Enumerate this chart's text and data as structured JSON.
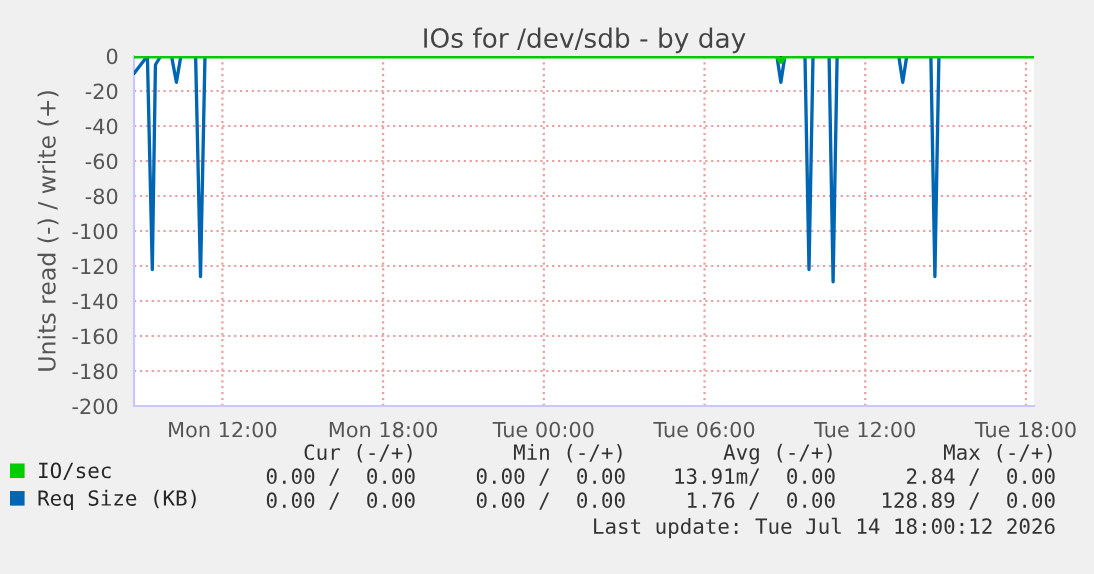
{
  "chart_data": {
    "type": "line",
    "title": "IOs for /dev/sdb - by day",
    "ylabel": "Units read (-) / write (+)",
    "xlim": [
      "2026-07-13T08:42",
      "2026-07-14T18:18"
    ],
    "xticks": [
      {
        "value": "2026-07-13T12:00",
        "label": "Mon 12:00"
      },
      {
        "value": "2026-07-13T18:00",
        "label": "Mon 18:00"
      },
      {
        "value": "2026-07-14T00:00",
        "label": "Tue 00:00"
      },
      {
        "value": "2026-07-14T06:00",
        "label": "Tue 06:00"
      },
      {
        "value": "2026-07-14T12:00",
        "label": "Tue 12:00"
      },
      {
        "value": "2026-07-14T18:00",
        "label": "Tue 18:00"
      }
    ],
    "ylim": [
      -200,
      0
    ],
    "yticks": [
      -200,
      -180,
      -160,
      -140,
      -120,
      -100,
      -80,
      -60,
      -40,
      -20,
      0
    ],
    "grid": true,
    "legend": "bottom left",
    "marker": "none",
    "line_style": "solid",
    "ref_lines": [
      {
        "axis": "y",
        "value": 0,
        "color": "#000000"
      }
    ],
    "series": [
      {
        "name": "IO/sec",
        "color": "#00cc00",
        "x": [
          "2026-07-13T08:42",
          "2026-07-14T08:42",
          "2026-07-14T08:51",
          "2026-07-14T09:00",
          "2026-07-14T18:18"
        ],
        "values": [
          0,
          0,
          -3,
          0,
          0
        ]
      },
      {
        "name": "Req Size (KB)",
        "color": "#0066b3",
        "x": [
          "2026-07-13T08:42",
          "2026-07-13T09:12",
          "2026-07-13T09:23",
          "2026-07-13T09:30",
          "2026-07-13T09:42",
          "2026-07-13T10:06",
          "2026-07-13T10:17",
          "2026-07-13T10:27",
          "2026-07-13T11:00",
          "2026-07-13T11:11",
          "2026-07-13T11:21",
          "2026-07-14T08:42",
          "2026-07-14T08:51",
          "2026-07-14T09:00",
          "2026-07-14T09:45",
          "2026-07-14T09:54",
          "2026-07-14T10:03",
          "2026-07-14T10:39",
          "2026-07-14T10:48",
          "2026-07-14T10:57",
          "2026-07-14T13:15",
          "2026-07-14T13:24",
          "2026-07-14T13:33",
          "2026-07-14T14:27",
          "2026-07-14T14:36",
          "2026-07-14T14:45",
          "2026-07-14T18:18"
        ],
        "values": [
          -10,
          0,
          -122,
          -5,
          0,
          0,
          -15,
          0,
          0,
          -126,
          0,
          0,
          -15,
          0,
          0,
          -122,
          0,
          0,
          -129,
          0,
          0,
          -15,
          0,
          0,
          -126,
          0,
          0
        ]
      }
    ],
    "annotations": [
      "Cur (-/+)",
      "Min (-/+)",
      "Avg (-/+)",
      "Max (-/+)",
      "0.00 /  0.00",
      "0.00 /  0.00",
      "13.91m/  0.00",
      "2.84 /  0.00",
      "0.00 /  0.00",
      "0.00 /  0.00",
      "1.76 /  0.00",
      "128.89 /  0.00",
      "Last update: Tue Jul 14 18:00:12 2026"
    ]
  }
}
